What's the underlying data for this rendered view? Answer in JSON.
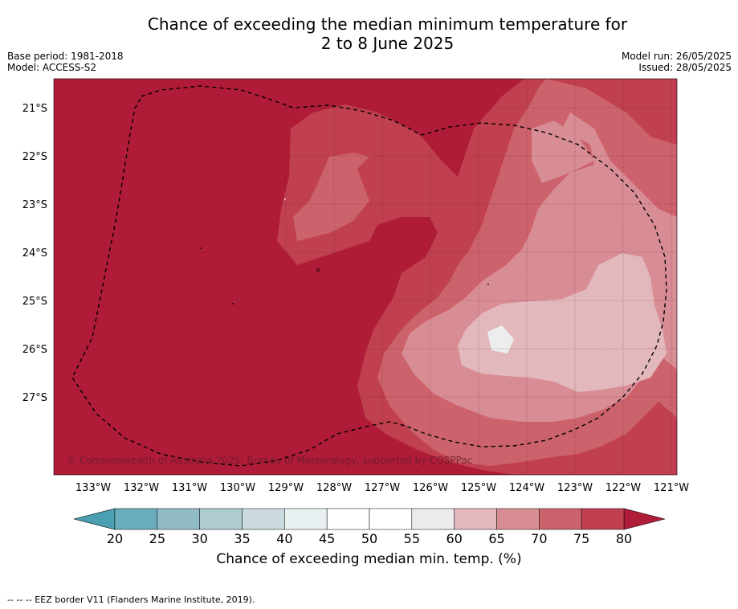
{
  "title": {
    "line1": "Chance of exceeding the median minimum temperature for",
    "line2": "2 to 8 June 2025"
  },
  "meta": {
    "base_period": "Base period: 1981-2018",
    "model": "Model: ACCESS-S2",
    "model_run": "Model run: 26/05/2025",
    "issued": "Issued: 28/05/2025"
  },
  "map": {
    "latitude_labels": [
      "21°S",
      "22°S",
      "23°S",
      "24°S",
      "25°S",
      "26°S",
      "27°S"
    ],
    "longitude_labels": [
      "133°W",
      "132°W",
      "131°W",
      "130°W",
      "129°W",
      "128°W",
      "127°W",
      "126°W",
      "125°W",
      "124°W",
      "123°W",
      "122°W",
      "121°W"
    ],
    "copyright": "© Commonwealth of Australia 2025, Bureau of Meteorology, supported by COSPPac",
    "colors": {
      "over80": "#b01c38",
      "c75_80": "#c0404f",
      "c70_75": "#cc626c",
      "c65_70": "#d88c94",
      "c60_65": "#e2b8bc",
      "c55_60": "#ededed"
    }
  },
  "colorbar": {
    "ticks": [
      "20",
      "25",
      "30",
      "35",
      "40",
      "45",
      "50",
      "55",
      "60",
      "65",
      "70",
      "75",
      "80"
    ],
    "colors": [
      "#6aadbc",
      "#8fbac6",
      "#aecbd2",
      "#cbdade",
      "#e8f0f2",
      "#ffffff",
      "#ffffff",
      "#ebebeb",
      "#e2b8bc",
      "#d88c94",
      "#cc626c",
      "#c0404f"
    ],
    "under_color": "#4aa0b0",
    "over_color": "#b01c38",
    "label": "Chance of exceeding median min. temp. (%)"
  },
  "footer": {
    "legend_note": "--  --  -- EEZ border V11 (Flanders Marine Institute, 2019)."
  }
}
